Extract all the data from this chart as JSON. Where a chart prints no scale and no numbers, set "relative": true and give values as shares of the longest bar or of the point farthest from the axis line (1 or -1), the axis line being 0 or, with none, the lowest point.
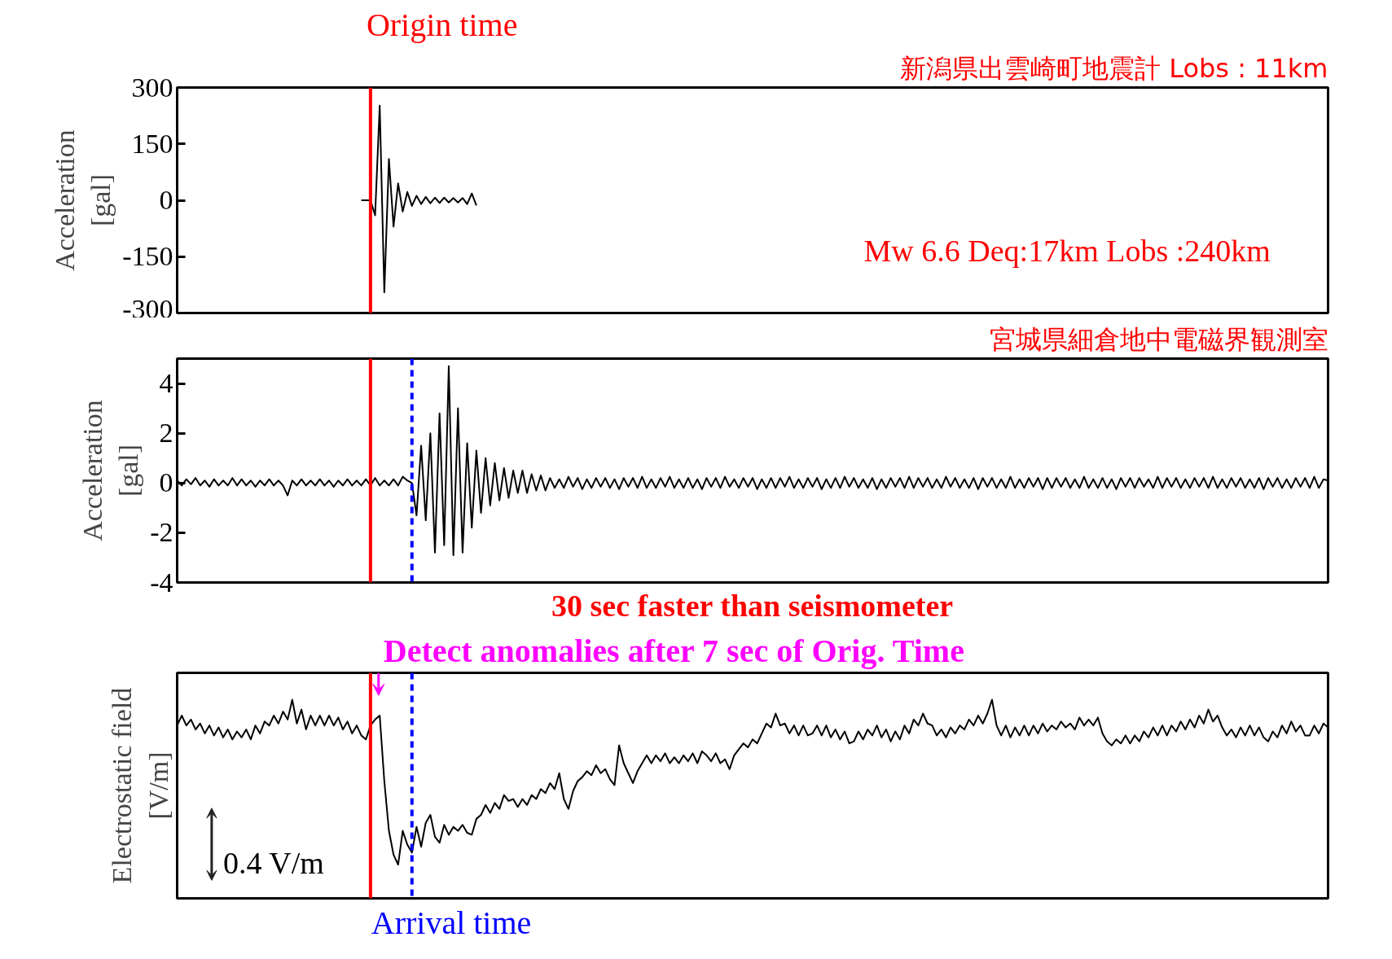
{
  "chart_data": [
    {
      "type": "line",
      "title": "新潟県出雲崎町地震計 Lobs : 11km",
      "ylabel": "Acceleration\n[gal]",
      "categories": [
        null,
        null,
        null,
        null,
        null,
        null,
        null,
        null,
        null,
        null,
        null,
        null,
        null,
        null,
        null,
        null,
        null,
        null,
        null,
        null,
        null,
        null,
        null,
        null,
        null,
        null,
        null,
        null,
        null,
        null,
        null,
        null,
        null,
        null,
        null,
        null,
        null,
        null,
        null,
        null,
        null,
        null,
        null,
        null,
        null,
        null,
        null,
        null,
        null,
        null,
        null,
        null,
        null,
        null,
        null,
        null,
        null,
        null,
        null,
        null,
        null,
        null,
        null,
        null,
        null,
        null,
        null,
        null,
        null,
        null,
        null,
        null,
        null,
        null,
        null,
        null,
        null,
        null,
        null,
        null,
        null,
        null,
        null,
        null,
        null,
        null,
        null,
        null,
        null,
        null,
        null,
        null,
        null,
        null,
        null,
        null,
        null,
        null,
        null,
        null,
        null,
        null,
        null,
        null,
        null,
        null,
        null,
        null,
        null,
        null,
        null,
        null,
        null,
        null,
        null,
        null,
        null,
        null,
        null,
        null,
        null,
        null,
        null,
        null,
        null,
        null,
        null,
        null,
        null,
        null,
        null,
        null,
        null,
        null,
        null,
        null,
        null,
        null,
        null,
        null,
        null,
        null,
        null,
        null,
        null,
        null,
        null,
        null,
        null,
        null,
        null,
        null,
        null,
        null,
        null,
        null,
        null,
        null,
        null,
        null,
        null,
        null,
        null,
        null,
        null,
        null,
        null,
        null,
        null,
        null,
        null,
        null,
        null,
        null,
        null,
        null,
        null,
        null,
        null,
        null,
        null,
        null,
        null,
        null,
        null,
        null,
        null,
        null,
        null,
        null,
        null,
        null,
        null,
        null,
        null,
        null,
        null,
        null,
        null,
        null,
        null,
        null,
        null,
        null,
        null,
        null,
        null,
        null,
        null,
        null,
        null,
        null,
        null,
        null,
        null,
        null,
        null,
        null,
        null,
        null,
        null,
        null,
        null,
        null,
        null,
        null,
        null,
        null,
        null,
        null,
        null,
        null,
        null,
        null,
        null,
        null,
        null,
        null,
        null,
        null,
        null,
        null,
        null,
        null,
        null,
        null,
        null,
        null,
        null,
        null,
        null
      ],
      "series": [
        {
          "color": "#000000",
          "values": [
            null,
            null,
            null,
            null,
            null,
            null,
            null,
            null,
            null,
            null,
            null,
            null,
            null,
            null,
            null,
            null,
            null,
            null,
            null,
            null,
            null,
            null,
            null,
            null,
            null,
            null,
            null,
            null,
            null,
            null,
            null,
            null,
            null,
            null,
            null,
            null,
            null,
            null,
            null,
            null,
            0,
            0,
            0,
            -40,
            252,
            -245,
            110,
            -70,
            45,
            -30,
            22,
            -15,
            12,
            -10,
            9,
            -8,
            7,
            -7,
            7,
            -6,
            6,
            -6,
            6,
            -10,
            18,
            -14,
            null,
            null,
            null,
            null,
            null,
            null,
            null,
            null,
            null,
            null,
            null,
            null,
            null,
            null,
            null,
            null,
            null,
            null,
            null,
            null,
            null,
            null,
            null,
            null,
            null,
            null,
            null,
            null,
            null,
            null,
            null,
            null,
            null,
            null,
            null,
            null,
            null,
            null,
            null,
            null,
            null,
            null,
            null,
            null,
            null,
            null,
            null,
            null,
            null,
            null,
            null,
            null,
            null,
            null,
            null,
            null,
            null,
            null,
            null,
            null,
            null,
            null,
            null,
            null,
            null,
            null,
            null,
            null,
            null,
            null,
            null,
            null,
            null,
            null,
            null,
            null,
            null,
            null,
            null,
            null,
            null,
            null,
            null,
            null,
            null,
            null,
            null,
            null,
            null,
            null,
            null,
            null,
            null,
            null,
            null,
            null,
            null,
            null,
            null,
            null,
            null,
            null,
            null,
            null,
            null,
            null,
            null,
            null,
            null,
            null,
            null,
            null,
            null,
            null,
            null,
            null,
            null,
            null,
            null,
            null,
            null,
            null,
            null,
            null,
            null,
            null,
            null,
            null,
            null,
            null,
            null,
            null,
            null,
            null,
            null,
            null,
            null,
            null,
            null,
            null,
            null,
            null,
            null,
            null,
            null,
            null,
            null,
            null,
            null,
            null,
            null,
            null,
            null,
            null,
            null,
            null,
            null,
            null,
            null,
            null,
            null,
            null,
            null,
            null,
            null,
            null,
            null,
            null,
            null,
            null,
            null,
            null,
            null,
            null,
            null,
            null,
            null,
            null,
            null,
            null,
            null,
            null,
            null,
            null,
            null
          ]
        }
      ],
      "ylim": [
        -300,
        300
      ],
      "yticks": [
        -300,
        -150,
        0,
        150,
        300
      ],
      "tick_labels": "y",
      "annotations": [
        "Origin time",
        "Mw 6.6 Deq:17km Lobs :240km"
      ]
    },
    {
      "type": "line",
      "title": "宮城県細倉地中電磁界観測室",
      "ylabel": "Acceleration\n[gal]",
      "categories": [
        null,
        null,
        null,
        null,
        null,
        null,
        null,
        null,
        null,
        null,
        null,
        null,
        null,
        null,
        null,
        null,
        null,
        null,
        null,
        null,
        null,
        null,
        null,
        null,
        null,
        null,
        null,
        null,
        null,
        null,
        null,
        null,
        null,
        null,
        null,
        null,
        null,
        null,
        null,
        null,
        null,
        null,
        null,
        null,
        null,
        null,
        null,
        null,
        null,
        null,
        null,
        null,
        null,
        null,
        null,
        null,
        null,
        null,
        null,
        null,
        null,
        null,
        null,
        null,
        null,
        null,
        null,
        null,
        null,
        null,
        null,
        null,
        null,
        null,
        null,
        null,
        null,
        null,
        null,
        null,
        null,
        null,
        null,
        null,
        null,
        null,
        null,
        null,
        null,
        null,
        null,
        null,
        null,
        null,
        null,
        null,
        null,
        null,
        null,
        null,
        null,
        null,
        null,
        null,
        null,
        null,
        null,
        null,
        null,
        null,
        null,
        null,
        null,
        null,
        null,
        null,
        null,
        null,
        null,
        null,
        null,
        null,
        null,
        null,
        null,
        null,
        null,
        null,
        null,
        null,
        null,
        null,
        null,
        null,
        null,
        null,
        null,
        null,
        null,
        null,
        null,
        null,
        null,
        null,
        null,
        null,
        null,
        null,
        null,
        null,
        null,
        null,
        null,
        null,
        null,
        null,
        null,
        null,
        null,
        null,
        null,
        null,
        null,
        null,
        null,
        null,
        null,
        null,
        null,
        null,
        null,
        null,
        null,
        null,
        null,
        null,
        null,
        null,
        null,
        null,
        null,
        null,
        null,
        null,
        null,
        null,
        null,
        null,
        null,
        null,
        null,
        null,
        null,
        null,
        null,
        null,
        null,
        null,
        null,
        null,
        null,
        null,
        null,
        null,
        null,
        null,
        null,
        null,
        null,
        null,
        null,
        null,
        null,
        null,
        null,
        null,
        null,
        null,
        null,
        null,
        null,
        null,
        null,
        null,
        null,
        null,
        null,
        null,
        null,
        null,
        null,
        null,
        null,
        null,
        null,
        null,
        null,
        null,
        null,
        null,
        null,
        null,
        null,
        null,
        null,
        null,
        null,
        null,
        null,
        null,
        null
      ],
      "series": [
        {
          "color": "#000000",
          "values": [
            0.1,
            -0.1,
            0.15,
            -0.05,
            0.2,
            -0.1,
            0.1,
            -0.15,
            0.15,
            -0.1,
            0.1,
            -0.1,
            0.2,
            -0.1,
            0.15,
            -0.1,
            0.1,
            -0.15,
            0.1,
            -0.1,
            0.15,
            -0.1,
            0.1,
            -0.1,
            -0.5,
            0.1,
            -0.1,
            0.15,
            -0.1,
            0.1,
            -0.1,
            0.15,
            -0.1,
            0.1,
            -0.15,
            0.1,
            -0.1,
            0.15,
            -0.1,
            0.1,
            -0.1,
            0.15,
            -0.1,
            0.2,
            -0.1,
            0.1,
            -0.1,
            0.15,
            -0.1,
            0.25,
            0.1,
            0,
            -1.3,
            1.5,
            -1.5,
            2.0,
            -2.8,
            2.8,
            -2.5,
            4.7,
            -2.9,
            3.0,
            -2.8,
            1.6,
            -1.8,
            1.3,
            -1.2,
            1.0,
            -0.9,
            0.8,
            -0.7,
            0.6,
            -0.6,
            0.5,
            -0.4,
            0.5,
            -0.4,
            0.35,
            -0.3,
            0.3,
            -0.3,
            0.2,
            -0.2,
            0.15,
            -0.2,
            0.25,
            -0.15,
            0.2,
            -0.25,
            0.15,
            -0.2,
            0.2,
            -0.15,
            0.2,
            -0.2,
            0.15,
            -0.25,
            0.2,
            -0.15,
            0.2,
            -0.2,
            0.25,
            -0.2,
            0.15,
            -0.2,
            0.2,
            -0.15,
            0.25,
            -0.2,
            0.15,
            -0.2,
            0.2,
            -0.2,
            0.15,
            -0.25,
            0.2,
            -0.15,
            0.2,
            -0.2,
            0.25,
            -0.15,
            0.15,
            -0.2,
            0.2,
            -0.15,
            0.2,
            -0.25,
            0.15,
            -0.2,
            0.2,
            -0.2,
            0.2,
            -0.15,
            0.25,
            -0.2,
            0.15,
            -0.2,
            0.2,
            -0.15,
            0.2,
            -0.25,
            0.15,
            -0.2,
            0.2,
            -0.2,
            0.25,
            -0.15,
            0.2,
            -0.2,
            0.15,
            -0.2,
            0.2,
            -0.25,
            0.15,
            -0.2,
            0.2,
            -0.15,
            0.2,
            -0.2,
            0.25,
            -0.2,
            0.2,
            -0.15,
            0.2,
            -0.2,
            0.15,
            -0.2,
            0.25,
            -0.15,
            0.2,
            -0.2,
            0.15,
            -0.2,
            0.2,
            -0.25,
            0.2,
            -0.15,
            0.2,
            -0.2,
            0.15,
            -0.2,
            0.25,
            -0.2,
            0.15,
            -0.2,
            0.2,
            -0.15,
            0.2,
            -0.25,
            0.2,
            -0.2,
            0.2,
            -0.15,
            0.2,
            -0.2,
            0.15,
            -0.2,
            0.25,
            -0.2,
            0.15,
            -0.2,
            0.2,
            -0.2,
            0.15,
            -0.25,
            0.2,
            -0.15,
            0.2,
            -0.2,
            0.2,
            -0.15,
            0.15,
            -0.2,
            0.25,
            -0.2,
            0.2,
            -0.15,
            0.2,
            -0.2,
            0.15,
            -0.2,
            0.2,
            -0.15,
            0.2,
            -0.2,
            0.25,
            -0.2,
            0.15,
            -0.2,
            0.2,
            -0.15,
            0.2,
            -0.2,
            0.15,
            -0.2,
            0.2,
            -0.25,
            0.2,
            -0.15,
            0.2,
            -0.2,
            0.15,
            -0.2,
            0.2,
            -0.15,
            0.2,
            -0.2,
            0.25,
            -0.2,
            0.15,
            0.1
          ]
        }
      ],
      "ylim": [
        -4,
        5
      ],
      "yticks": [
        -4,
        -2,
        0,
        2,
        4
      ],
      "tick_labels": "y",
      "annotations": [
        "30 sec faster than seismometer"
      ]
    },
    {
      "type": "line",
      "ylabel": "Electrostatic field\n[V/m]",
      "relative": true,
      "categories": [
        null,
        null,
        null,
        null,
        null,
        null,
        null,
        null,
        null,
        null,
        null,
        null,
        null,
        null,
        null,
        null,
        null,
        null,
        null,
        null,
        null,
        null,
        null,
        null,
        null,
        null,
        null,
        null,
        null,
        null,
        null,
        null,
        null,
        null,
        null,
        null,
        null,
        null,
        null,
        null,
        null,
        null,
        null,
        null,
        null,
        null,
        null,
        null,
        null,
        null,
        null,
        null,
        null,
        null,
        null,
        null,
        null,
        null,
        null,
        null,
        null,
        null,
        null,
        null,
        null,
        null,
        null,
        null,
        null,
        null,
        null,
        null,
        null,
        null,
        null,
        null,
        null,
        null,
        null,
        null,
        null,
        null,
        null,
        null,
        null,
        null,
        null,
        null,
        null,
        null,
        null,
        null,
        null,
        null,
        null,
        null,
        null,
        null,
        null,
        null,
        null,
        null,
        null,
        null,
        null,
        null,
        null,
        null,
        null,
        null,
        null,
        null,
        null,
        null,
        null,
        null,
        null,
        null,
        null,
        null,
        null,
        null,
        null,
        null,
        null,
        null,
        null,
        null,
        null,
        null,
        null,
        null,
        null,
        null,
        null,
        null,
        null,
        null,
        null,
        null,
        null,
        null,
        null,
        null,
        null,
        null,
        null,
        null,
        null,
        null,
        null,
        null,
        null,
        null,
        null,
        null,
        null,
        null,
        null,
        null,
        null,
        null,
        null,
        null,
        null,
        null,
        null,
        null,
        null,
        null,
        null,
        null,
        null,
        null,
        null,
        null,
        null,
        null,
        null,
        null,
        null,
        null,
        null,
        null,
        null,
        null,
        null,
        null,
        null,
        null,
        null,
        null,
        null,
        null,
        null,
        null,
        null,
        null,
        null,
        null,
        null,
        null,
        null,
        null,
        null,
        null,
        null,
        null,
        null,
        null,
        null,
        null,
        null,
        null,
        null,
        null,
        null,
        null,
        null,
        null,
        null,
        null,
        null,
        null,
        null,
        null,
        null,
        null,
        null,
        null,
        null,
        null,
        null,
        null,
        null,
        null,
        null,
        null,
        null,
        null,
        null,
        null,
        null,
        null,
        null,
        null,
        null,
        null,
        null,
        null,
        null
      ],
      "series": [
        {
          "color": "#000000",
          "values": [
            0.87,
            0.92,
            0.87,
            0.9,
            0.85,
            0.88,
            0.83,
            0.87,
            0.82,
            0.86,
            0.81,
            0.85,
            0.8,
            0.84,
            0.81,
            0.85,
            0.8,
            0.87,
            0.83,
            0.89,
            0.87,
            0.92,
            0.88,
            0.94,
            0.9,
            1.0,
            0.88,
            0.95,
            0.85,
            0.92,
            0.87,
            0.92,
            0.87,
            0.92,
            0.87,
            0.91,
            0.85,
            0.89,
            0.83,
            0.87,
            0.82,
            0.8,
            0.87,
            0.9,
            0.92,
            0.59,
            0.34,
            0.22,
            0.17,
            0.34,
            0.27,
            0.23,
            0.36,
            0.26,
            0.38,
            0.42,
            0.31,
            0.28,
            0.37,
            0.32,
            0.36,
            0.34,
            0.37,
            0.33,
            0.32,
            0.4,
            0.42,
            0.47,
            0.43,
            0.48,
            0.45,
            0.52,
            0.49,
            0.5,
            0.46,
            0.5,
            0.47,
            0.52,
            0.5,
            0.55,
            0.53,
            0.58,
            0.55,
            0.63,
            0.5,
            0.45,
            0.54,
            0.59,
            0.61,
            0.64,
            0.62,
            0.67,
            0.63,
            0.65,
            0.6,
            0.57,
            0.77,
            0.68,
            0.63,
            0.58,
            0.64,
            0.68,
            0.72,
            0.68,
            0.72,
            0.69,
            0.73,
            0.68,
            0.71,
            0.68,
            0.72,
            0.69,
            0.73,
            0.68,
            0.74,
            0.72,
            0.69,
            0.73,
            0.68,
            0.7,
            0.65,
            0.72,
            0.75,
            0.78,
            0.76,
            0.8,
            0.78,
            0.83,
            0.88,
            0.86,
            0.93,
            0.87,
            0.88,
            0.83,
            0.87,
            0.82,
            0.87,
            0.82,
            0.83,
            0.87,
            0.82,
            0.87,
            0.81,
            0.85,
            0.8,
            0.84,
            0.78,
            0.79,
            0.84,
            0.8,
            0.85,
            0.82,
            0.87,
            0.81,
            0.85,
            0.79,
            0.84,
            0.8,
            0.87,
            0.83,
            0.9,
            0.87,
            0.93,
            0.88,
            0.87,
            0.82,
            0.85,
            0.81,
            0.86,
            0.83,
            0.87,
            0.85,
            0.9,
            0.87,
            0.92,
            0.88,
            0.93,
            1.0,
            0.87,
            0.82,
            0.87,
            0.81,
            0.86,
            0.82,
            0.87,
            0.82,
            0.87,
            0.83,
            0.88,
            0.84,
            0.87,
            0.85,
            0.89,
            0.86,
            0.88,
            0.85,
            0.91,
            0.87,
            0.9,
            0.87,
            0.91,
            0.83,
            0.79,
            0.77,
            0.8,
            0.78,
            0.82,
            0.78,
            0.82,
            0.79,
            0.84,
            0.81,
            0.86,
            0.82,
            0.87,
            0.82,
            0.87,
            0.84,
            0.89,
            0.85,
            0.9,
            0.86,
            0.92,
            0.88,
            0.95,
            0.89,
            0.92,
            0.86,
            0.82,
            0.85,
            0.81,
            0.86,
            0.82,
            0.87,
            0.82,
            0.86,
            0.81,
            0.79,
            0.84,
            0.81,
            0.87,
            0.83,
            0.89,
            0.84,
            0.87,
            0.82,
            0.82,
            0.87,
            0.83,
            0.88,
            0.86
          ]
        }
      ],
      "tick_labels": false,
      "annotations": [
        "Detect anomalies after 7 sec of Orig. Time",
        "0.4 V/m",
        "Arrival time"
      ]
    }
  ]
}
